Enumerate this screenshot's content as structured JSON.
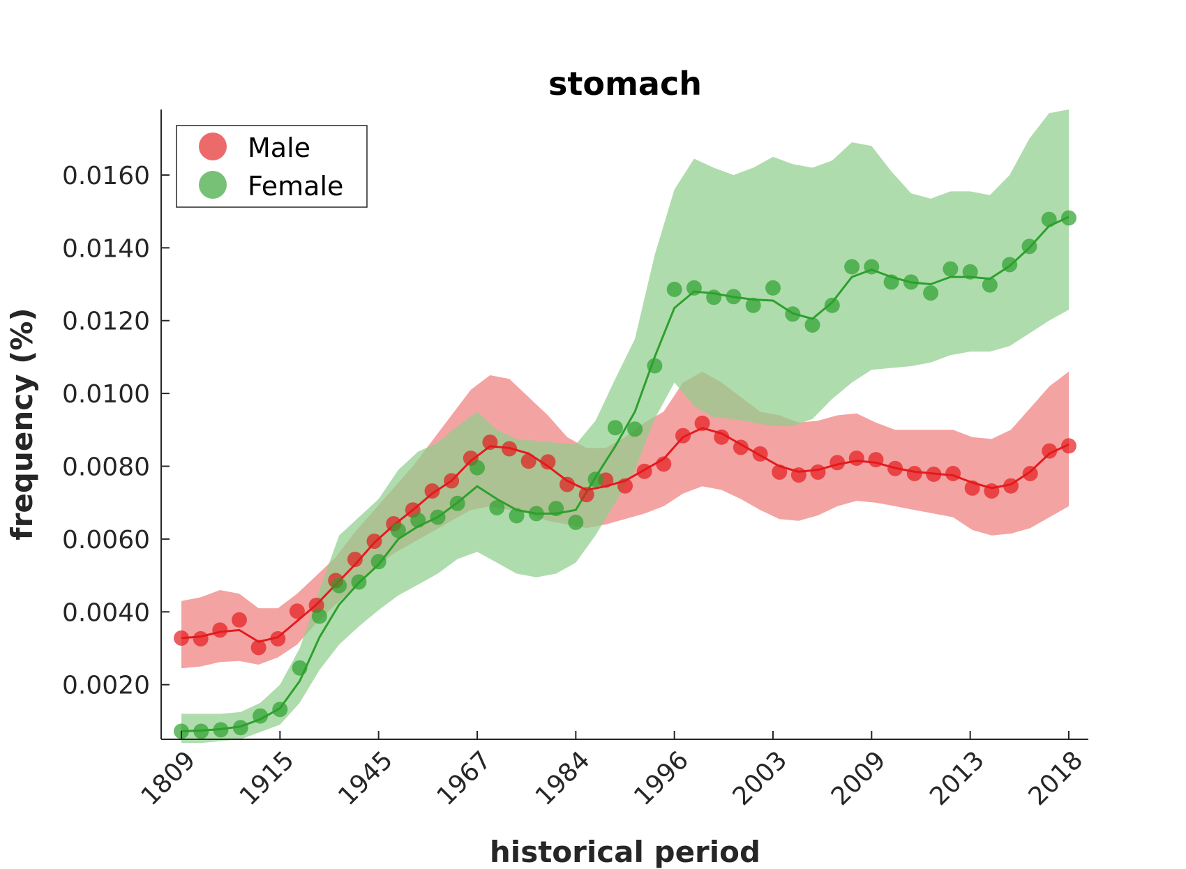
{
  "chart_data": {
    "type": "line",
    "title": "stomach",
    "xlabel": "historical period",
    "ylabel": "frequency (%)",
    "x_tick_labels": [
      "1809",
      "1915",
      "1945",
      "1967",
      "1984",
      "1996",
      "2003",
      "2009",
      "2013",
      "2018"
    ],
    "y_ticks": [
      "0.0020",
      "0.0040",
      "0.0060",
      "0.0080",
      "0.0100",
      "0.0120",
      "0.0140",
      "0.0160"
    ],
    "ylim": [
      0.0005,
      0.0178
    ],
    "legend_position": "top-left",
    "series": [
      {
        "name": "Male",
        "color": "#e41a1c",
        "band_color": "#f08080",
        "points": [
          0.00328,
          0.00326,
          0.0035,
          0.00378,
          0.00302,
          0.00326,
          0.00402,
          0.00418,
          0.00486,
          0.00544,
          0.00594,
          0.00642,
          0.0068,
          0.00732,
          0.0076,
          0.00822,
          0.00866,
          0.00848,
          0.00814,
          0.00812,
          0.0075,
          0.00722,
          0.00762,
          0.00746,
          0.00786,
          0.00806,
          0.00884,
          0.00918,
          0.0088,
          0.00852,
          0.00834,
          0.00784,
          0.00776,
          0.00784,
          0.0081,
          0.00822,
          0.00818,
          0.00794,
          0.0078,
          0.00778,
          0.0078,
          0.0074,
          0.00732,
          0.00746,
          0.0078,
          0.00842,
          0.00856
        ],
        "line": [
          0.00328,
          0.00332,
          0.00345,
          0.0035,
          0.00318,
          0.0033,
          0.00375,
          0.0042,
          0.00475,
          0.0053,
          0.0059,
          0.00638,
          0.0068,
          0.00725,
          0.0076,
          0.00815,
          0.00855,
          0.0085,
          0.00835,
          0.008,
          0.0076,
          0.00735,
          0.00745,
          0.0076,
          0.0079,
          0.0082,
          0.0088,
          0.00905,
          0.0089,
          0.0086,
          0.0083,
          0.008,
          0.00785,
          0.0079,
          0.00805,
          0.00815,
          0.0081,
          0.00795,
          0.00785,
          0.0078,
          0.00775,
          0.00755,
          0.0074,
          0.0075,
          0.00785,
          0.00835,
          0.0086
        ],
        "lower": [
          0.00245,
          0.0025,
          0.00262,
          0.00265,
          0.00255,
          0.00275,
          0.0031,
          0.0037,
          0.0042,
          0.0047,
          0.0052,
          0.0056,
          0.0059,
          0.0062,
          0.0065,
          0.0068,
          0.0069,
          0.0068,
          0.0067,
          0.0065,
          0.0064,
          0.0063,
          0.0064,
          0.00655,
          0.0067,
          0.0069,
          0.00725,
          0.00745,
          0.00735,
          0.0071,
          0.0068,
          0.00655,
          0.0065,
          0.00665,
          0.0069,
          0.00705,
          0.007,
          0.0069,
          0.0068,
          0.0067,
          0.0066,
          0.00625,
          0.0061,
          0.00615,
          0.0063,
          0.0066,
          0.0069
        ],
        "upper": [
          0.0043,
          0.0044,
          0.0046,
          0.0045,
          0.0041,
          0.0041,
          0.0045,
          0.005,
          0.0055,
          0.0062,
          0.0068,
          0.0074,
          0.008,
          0.0087,
          0.0094,
          0.0101,
          0.0105,
          0.0104,
          0.0099,
          0.0094,
          0.0088,
          0.0085,
          0.0085,
          0.0088,
          0.0092,
          0.0095,
          0.0103,
          0.0106,
          0.0103,
          0.0099,
          0.0095,
          0.0094,
          0.0092,
          0.00925,
          0.0094,
          0.00945,
          0.0092,
          0.009,
          0.009,
          0.009,
          0.009,
          0.0088,
          0.00875,
          0.009,
          0.0096,
          0.0102,
          0.0106
        ]
      },
      {
        "name": "Female",
        "color": "#2ca02c",
        "band_color": "#90cf8e",
        "points": [
          0.00072,
          0.00072,
          0.00076,
          0.00082,
          0.00114,
          0.00132,
          0.00246,
          0.00388,
          0.00472,
          0.00482,
          0.00538,
          0.00624,
          0.00652,
          0.0066,
          0.00698,
          0.00796,
          0.00686,
          0.00664,
          0.0067,
          0.00684,
          0.00646,
          0.00764,
          0.00906,
          0.00902,
          0.01076,
          0.01286,
          0.0129,
          0.01264,
          0.01266,
          0.01242,
          0.0129,
          0.01218,
          0.01188,
          0.01242,
          0.01348,
          0.01348,
          0.01306,
          0.01306,
          0.01276,
          0.01342,
          0.01334,
          0.01298,
          0.01354,
          0.01404,
          0.01478,
          0.01482
        ],
        "line": [
          0.00072,
          0.00074,
          0.00078,
          0.00085,
          0.00105,
          0.00135,
          0.0021,
          0.0033,
          0.0042,
          0.0048,
          0.0053,
          0.006,
          0.00635,
          0.0066,
          0.007,
          0.00745,
          0.0071,
          0.0068,
          0.0067,
          0.0067,
          0.0068,
          0.0077,
          0.00855,
          0.0095,
          0.011,
          0.01235,
          0.0128,
          0.01275,
          0.01265,
          0.01258,
          0.01255,
          0.0122,
          0.01205,
          0.0125,
          0.0132,
          0.0134,
          0.0132,
          0.01305,
          0.013,
          0.0132,
          0.0132,
          0.01315,
          0.0135,
          0.014,
          0.0146,
          0.01485
        ],
        "lower": [
          0.0004,
          0.0004,
          0.00045,
          0.0005,
          0.0007,
          0.0009,
          0.0015,
          0.0024,
          0.0031,
          0.0036,
          0.00405,
          0.00445,
          0.00475,
          0.00505,
          0.00545,
          0.00565,
          0.00535,
          0.00505,
          0.00495,
          0.00505,
          0.00535,
          0.0061,
          0.007,
          0.0079,
          0.0093,
          0.0103,
          0.00965,
          0.00935,
          0.0093,
          0.0092,
          0.0091,
          0.0091,
          0.0093,
          0.00985,
          0.0103,
          0.01065,
          0.0107,
          0.01075,
          0.01085,
          0.01105,
          0.01115,
          0.01115,
          0.0113,
          0.01165,
          0.012,
          0.0123
        ],
        "upper": [
          0.0012,
          0.0012,
          0.0012,
          0.00125,
          0.0015,
          0.002,
          0.003,
          0.0046,
          0.0061,
          0.0066,
          0.0071,
          0.0079,
          0.0084,
          0.00865,
          0.0091,
          0.0095,
          0.009,
          0.00875,
          0.0087,
          0.00865,
          0.0086,
          0.00925,
          0.0104,
          0.0115,
          0.0138,
          0.0156,
          0.01645,
          0.0162,
          0.016,
          0.0162,
          0.0165,
          0.0163,
          0.0162,
          0.0164,
          0.0169,
          0.0168,
          0.0161,
          0.0155,
          0.01535,
          0.01555,
          0.01555,
          0.01545,
          0.016,
          0.017,
          0.0177,
          0.0178
        ]
      }
    ]
  }
}
